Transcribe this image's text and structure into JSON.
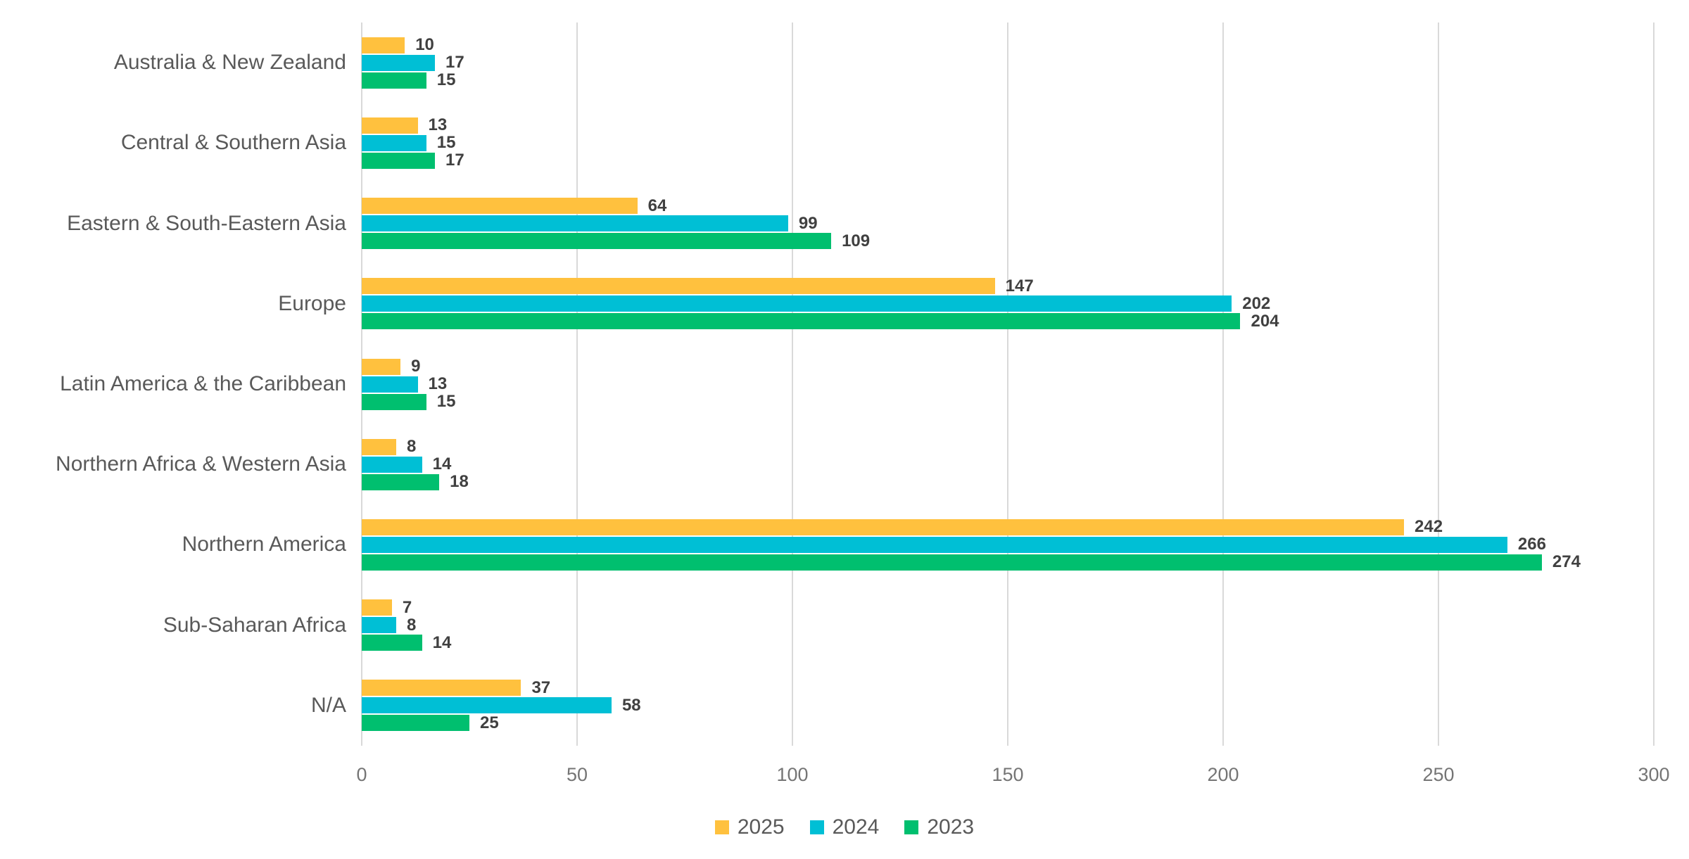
{
  "chart_data": {
    "type": "bar",
    "orientation": "horizontal",
    "title": "",
    "xlabel": "",
    "ylabel": "",
    "xlim": [
      0,
      300
    ],
    "x_ticks": [
      "0",
      "50",
      "100",
      "150",
      "200",
      "250",
      "300"
    ],
    "x_tick_values": [
      0,
      50,
      100,
      150,
      200,
      250,
      300
    ],
    "grid": true,
    "data_labels": true,
    "legend_position": "bottom",
    "categories": [
      "Australia & New Zealand",
      "Central & Southern Asia",
      "Eastern & South-Eastern Asia",
      "Europe",
      "Latin America & the Caribbean",
      "Northern Africa & Western Asia",
      "Northern America",
      "Sub-Saharan Africa",
      "N/A"
    ],
    "series": [
      {
        "name": "2025",
        "color": "#FFC13E",
        "values": [
          10,
          13,
          64,
          147,
          9,
          8,
          242,
          7,
          37
        ]
      },
      {
        "name": "2024",
        "color": "#00BFD5",
        "values": [
          17,
          15,
          99,
          202,
          13,
          14,
          266,
          8,
          58
        ]
      },
      {
        "name": "2023",
        "color": "#00BF6F",
        "values": [
          15,
          17,
          109,
          204,
          15,
          18,
          274,
          14,
          25
        ]
      }
    ]
  },
  "colors": {
    "gridline": "#d9d9d9",
    "category_text": "#595959",
    "value_text": "#404040",
    "tick_text": "#757575",
    "legend_text": "#595959",
    "background": "#ffffff"
  }
}
